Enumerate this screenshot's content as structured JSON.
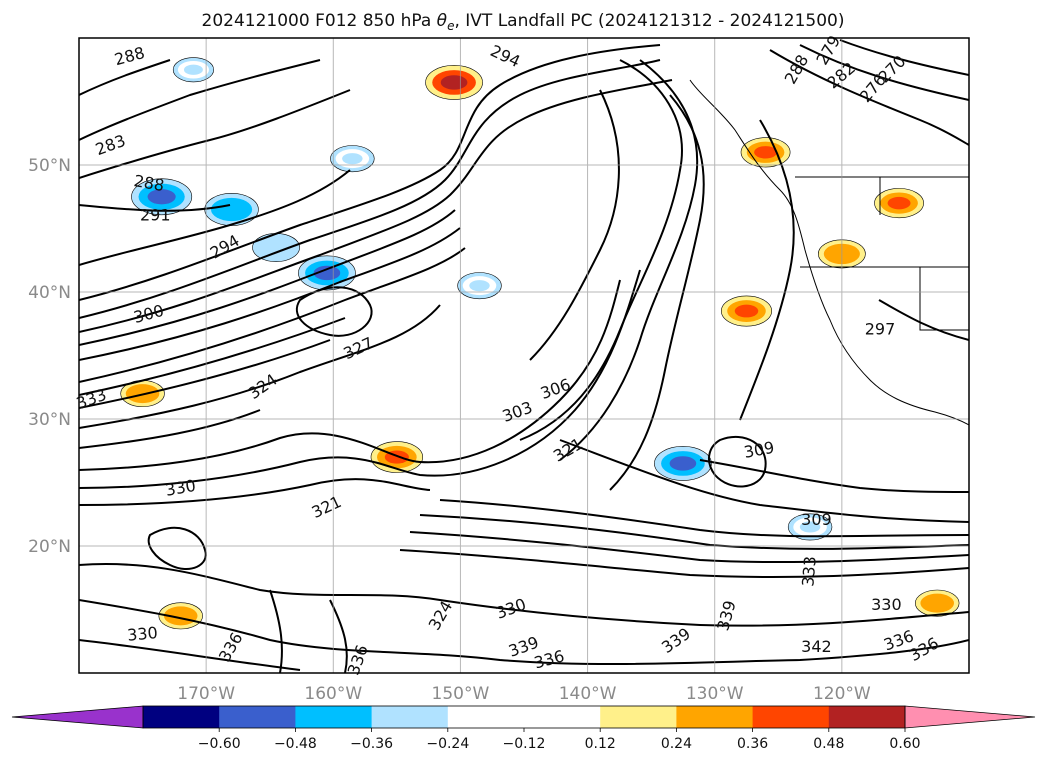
{
  "chart_data": {
    "type": "heatmap",
    "title_prefix": "2024121000 F012 850 hPa ",
    "title_symbol": "θ",
    "title_subscript": "e",
    "title_suffix": ", IVT Landfall PC (2024121312 - 2024121500)",
    "lon_range": [
      -180,
      -110
    ],
    "lat_range": [
      10,
      60
    ],
    "x_ticks": [
      {
        "value": -170,
        "label": "170°W"
      },
      {
        "value": -160,
        "label": "160°W"
      },
      {
        "value": -150,
        "label": "150°W"
      },
      {
        "value": -140,
        "label": "140°W"
      },
      {
        "value": -130,
        "label": "130°W"
      },
      {
        "value": -120,
        "label": "120°W"
      }
    ],
    "y_ticks": [
      {
        "value": 20,
        "label": "20°N"
      },
      {
        "value": 30,
        "label": "30°N"
      },
      {
        "value": 40,
        "label": "40°N"
      },
      {
        "value": 50,
        "label": "50°N"
      }
    ],
    "grid": true,
    "colorbar": {
      "levels": [
        -0.72,
        -0.6,
        -0.48,
        -0.36,
        -0.24,
        -0.12,
        0.12,
        0.24,
        0.36,
        0.48,
        0.6,
        0.72
      ],
      "tick_labels": [
        "−0.60",
        "−0.48",
        "−0.36",
        "−0.24",
        "−0.12",
        "0.12",
        "0.24",
        "0.36",
        "0.48",
        "0.60"
      ],
      "colors": [
        "#000080",
        "#3a5fcd",
        "#00bfff",
        "#b0e2ff",
        "#ffffff",
        "#ffffff",
        "#fff08a",
        "#ffa500",
        "#ff4500",
        "#b22222"
      ],
      "under_color": "#9932cc",
      "over_color": "#ff8fb0",
      "extend": "both",
      "orientation": "horizontal"
    },
    "shaded_patches": [
      {
        "lon": -173.5,
        "lat": 47.5,
        "value": -0.55
      },
      {
        "lon": -168,
        "lat": 46.5,
        "value": -0.45
      },
      {
        "lon": -164.5,
        "lat": 43.5,
        "value": -0.35
      },
      {
        "lon": -160.5,
        "lat": 41.5,
        "value": -0.5
      },
      {
        "lon": -158.5,
        "lat": 50.5,
        "value": -0.3
      },
      {
        "lon": -171,
        "lat": 57.5,
        "value": -0.25
      },
      {
        "lon": -148.5,
        "lat": 40.5,
        "value": -0.3
      },
      {
        "lon": -132.5,
        "lat": 26.5,
        "value": -0.5
      },
      {
        "lon": -122.5,
        "lat": 21.5,
        "value": -0.3
      },
      {
        "lon": -150.5,
        "lat": 56.5,
        "value": 0.5
      },
      {
        "lon": -127.5,
        "lat": 38.5,
        "value": 0.4
      },
      {
        "lon": -126.0,
        "lat": 51.0,
        "value": 0.38
      },
      {
        "lon": -115.5,
        "lat": 47.0,
        "value": 0.38
      },
      {
        "lon": -120.0,
        "lat": 43.0,
        "value": 0.35
      },
      {
        "lon": -155.0,
        "lat": 27.0,
        "value": 0.42
      },
      {
        "lon": -175.0,
        "lat": 32.0,
        "value": 0.3
      },
      {
        "lon": -172.0,
        "lat": 14.5,
        "value": 0.3
      },
      {
        "lon": -112.5,
        "lat": 15.5,
        "value": 0.3
      }
    ],
    "contour_labels": [
      {
        "text": "288",
        "lon": -176,
        "lat": 58.5,
        "rot": -15
      },
      {
        "text": "294",
        "lon": -146.5,
        "lat": 58.5,
        "rot": 25
      },
      {
        "text": "288",
        "lon": -174.5,
        "lat": 48.5,
        "rot": 10
      },
      {
        "text": "283",
        "lon": -177.5,
        "lat": 51.5,
        "rot": -20
      },
      {
        "text": "291",
        "lon": -174,
        "lat": 46,
        "rot": 0
      },
      {
        "text": "294",
        "lon": -168.5,
        "lat": 43.5,
        "rot": -30
      },
      {
        "text": "300",
        "lon": -174.5,
        "lat": 38.2,
        "rot": -15
      },
      {
        "text": "327",
        "lon": -158,
        "lat": 35.5,
        "rot": -25
      },
      {
        "text": "333",
        "lon": -179,
        "lat": 31.5,
        "rot": -20
      },
      {
        "text": "324",
        "lon": -165.5,
        "lat": 32.5,
        "rot": -35
      },
      {
        "text": "306",
        "lon": -142.5,
        "lat": 32.3,
        "rot": -20
      },
      {
        "text": "303",
        "lon": -145.5,
        "lat": 30.5,
        "rot": -20
      },
      {
        "text": "321",
        "lon": -141.5,
        "lat": 27.5,
        "rot": -30
      },
      {
        "text": "309",
        "lon": -126.5,
        "lat": 27.5,
        "rot": -10
      },
      {
        "text": "321",
        "lon": -160.5,
        "lat": 23.0,
        "rot": -25
      },
      {
        "text": "309",
        "lon": -122.0,
        "lat": 22.0,
        "rot": 0
      },
      {
        "text": "330",
        "lon": -146,
        "lat": 15.0,
        "rot": -20
      },
      {
        "text": "339",
        "lon": -133,
        "lat": 12.5,
        "rot": -35
      },
      {
        "text": "339",
        "lon": -129,
        "lat": 14.5,
        "rot": -75
      },
      {
        "text": "339",
        "lon": -145,
        "lat": 12.0,
        "rot": -20
      },
      {
        "text": "336",
        "lon": -143,
        "lat": 11.0,
        "rot": -15
      },
      {
        "text": "342",
        "lon": -122.0,
        "lat": 12.0,
        "rot": 0
      },
      {
        "text": "330",
        "lon": -116.5,
        "lat": 15.3,
        "rot": 0
      },
      {
        "text": "336",
        "lon": -115.5,
        "lat": 12.5,
        "rot": -20
      },
      {
        "text": "336",
        "lon": -113.5,
        "lat": 11.8,
        "rot": -30
      },
      {
        "text": "330",
        "lon": -175,
        "lat": 13.0,
        "rot": -5
      },
      {
        "text": "330",
        "lon": -172,
        "lat": 24.5,
        "rot": -10
      },
      {
        "text": "336",
        "lon": -168,
        "lat": 12.0,
        "rot": -60
      },
      {
        "text": "324",
        "lon": -151.5,
        "lat": 14.5,
        "rot": -60
      },
      {
        "text": "336",
        "lon": -158,
        "lat": 11.0,
        "rot": -70
      },
      {
        "text": "333",
        "lon": -122.5,
        "lat": 18.0,
        "rot": -85
      },
      {
        "text": "279",
        "lon": -121,
        "lat": 59.0,
        "rot": -60
      },
      {
        "text": "288",
        "lon": -123.5,
        "lat": 57.5,
        "rot": -60
      },
      {
        "text": "282",
        "lon": -120,
        "lat": 57.0,
        "rot": -40
      },
      {
        "text": "270",
        "lon": -116,
        "lat": 57.5,
        "rot": -45
      },
      {
        "text": "276",
        "lon": -117.5,
        "lat": 56.0,
        "rot": -50
      },
      {
        "text": "297",
        "lon": -117,
        "lat": 37.0,
        "rot": 0
      }
    ]
  }
}
